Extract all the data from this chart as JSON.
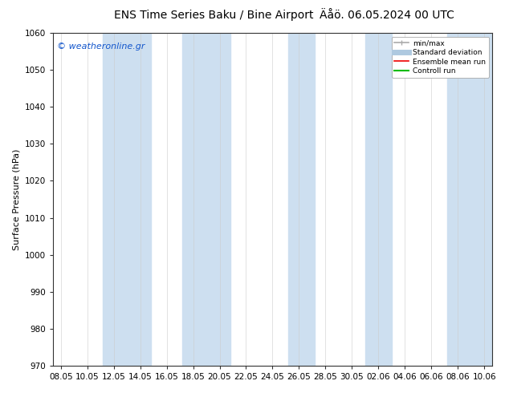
{
  "title_left": "ENS Time Series Baku / Bine Airport",
  "title_right": "Äåö. 06.05.2024 00 UTC",
  "ylabel": "Surface Pressure (hPa)",
  "ylim": [
    970,
    1060
  ],
  "yticks": [
    970,
    980,
    990,
    1000,
    1010,
    1020,
    1030,
    1040,
    1050,
    1060
  ],
  "xtick_labels": [
    "08.05",
    "10.05",
    "12.05",
    "14.05",
    "16.05",
    "18.05",
    "20.05",
    "22.05",
    "24.05",
    "26.05",
    "28.05",
    "30.05",
    "02.06",
    "04.06",
    "06.06",
    "08.06",
    "10.06"
  ],
  "bg_color": "#ffffff",
  "band_color": "#cddff0",
  "watermark": "© weatheronline.gr",
  "legend_items": [
    {
      "label": "min/max",
      "color": "#aaaaaa",
      "lw": 1.2
    },
    {
      "label": "Standard deviation",
      "color": "#aec9e0",
      "lw": 5
    },
    {
      "label": "Ensemble mean run",
      "color": "#ee0000",
      "lw": 1.2
    },
    {
      "label": "Controll run",
      "color": "#00bb00",
      "lw": 1.5
    }
  ],
  "title_fontsize": 10,
  "tick_fontsize": 7.5,
  "ylabel_fontsize": 8,
  "watermark_fontsize": 8
}
